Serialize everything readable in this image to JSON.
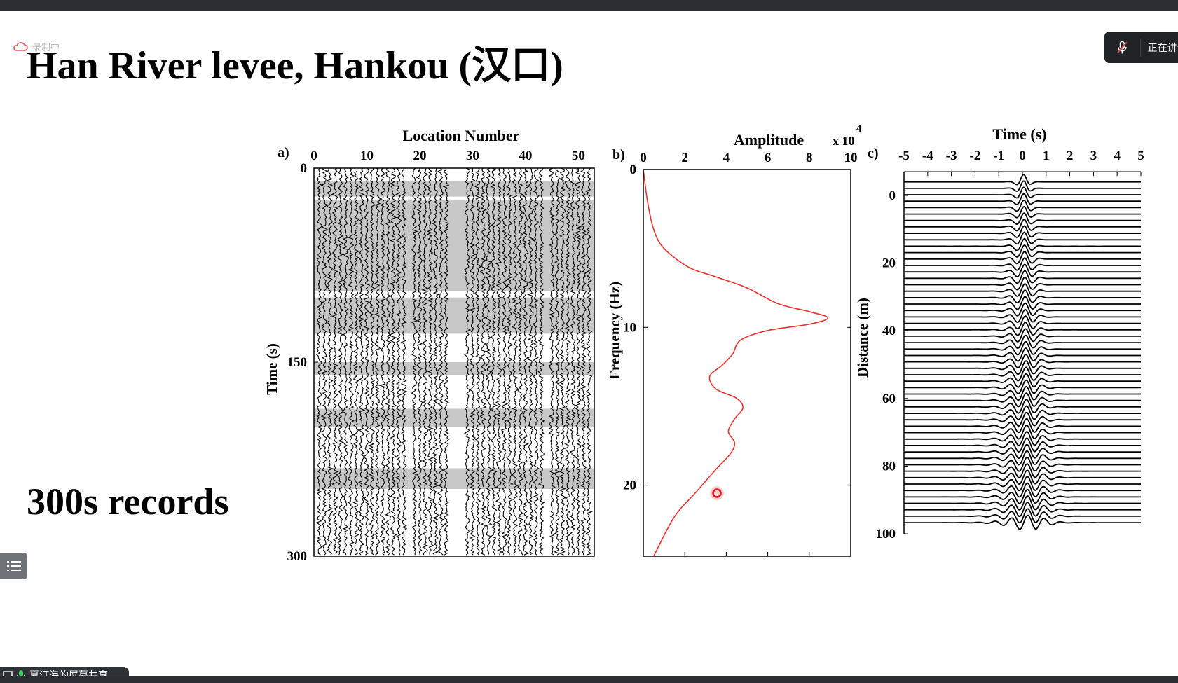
{
  "window": {
    "recording_label": "录制中",
    "speaker_status": "正在讲话",
    "share_label": "夏汀海的屏幕共享"
  },
  "slide": {
    "title": "Han River levee, Hankou (汉口)",
    "subtitle": "300s records"
  },
  "chart_data": [
    {
      "panel": "a)",
      "type": "heatmap",
      "xlabel": "Location Number",
      "ylabel": "Time (s)",
      "x_ticks": [
        "0",
        "10",
        "20",
        "30",
        "40",
        "50"
      ],
      "y_ticks": [
        "0",
        "150",
        "300"
      ],
      "xlim": [
        0,
        53
      ],
      "ylim": [
        0,
        300
      ],
      "trace_locations": [
        1,
        2,
        3,
        4,
        5,
        6,
        7,
        8,
        9,
        10,
        11,
        12,
        13,
        14,
        15,
        16,
        17,
        19,
        20,
        21,
        22,
        23,
        24,
        25,
        29,
        30,
        31,
        32,
        33,
        34,
        35,
        36,
        37,
        38,
        39,
        40,
        41,
        42,
        43,
        45,
        46,
        47,
        48,
        49,
        50,
        51,
        52
      ]
    },
    {
      "panel": "b)",
      "type": "line",
      "xlabel": "Amplitude",
      "x_multiplier": "x 10",
      "x_multiplier_exponent": "4",
      "ylabel": "Frequency (Hz)",
      "x_ticks": [
        "0",
        "2",
        "4",
        "6",
        "8",
        "10"
      ],
      "y_ticks": [
        "0",
        "10",
        "20"
      ],
      "xlim": [
        0,
        10
      ],
      "ylim": [
        0,
        24.5
      ],
      "color": "#e8322e",
      "x": [
        0,
        0.2,
        0.5,
        1.0,
        2.2,
        3.5,
        5.0,
        6.5,
        8.0,
        8.9,
        8.0,
        6.0,
        4.7,
        4.3,
        3.8,
        3.2,
        3.5,
        4.5,
        4.8,
        4.4,
        4.1,
        4.4,
        4.2,
        3.5,
        2.5,
        1.5,
        0.5
      ],
      "y": [
        0,
        2.0,
        3.8,
        5.0,
        6.2,
        6.8,
        7.5,
        8.5,
        9.0,
        9.4,
        9.8,
        10.2,
        10.8,
        11.7,
        12.4,
        13.1,
        13.9,
        14.5,
        15.1,
        15.8,
        16.6,
        17.3,
        18.0,
        19.0,
        20.5,
        22.0,
        24.5
      ]
    },
    {
      "panel": "c)",
      "type": "line",
      "xlabel": "Time (s)",
      "ylabel": "Distance (m)",
      "x_ticks": [
        "-5",
        "-4",
        "-3",
        "-2",
        "-1",
        "0",
        "1",
        "2",
        "3",
        "4",
        "5"
      ],
      "y_ticks": [
        "0",
        "20",
        "40",
        "60",
        "80",
        "100"
      ],
      "xlim": [
        -5,
        5
      ],
      "ylim": [
        -7,
        100
      ],
      "trace_count": 54,
      "trace_spacing_m": 1.9
    }
  ]
}
